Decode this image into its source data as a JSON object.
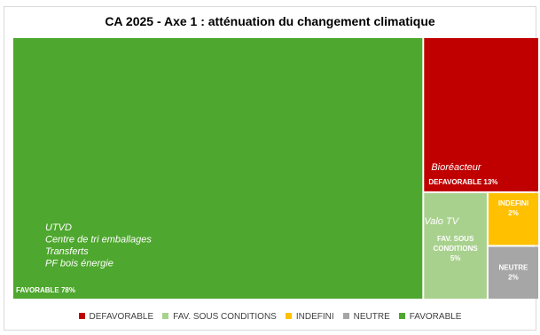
{
  "chart_data": {
    "type": "treemap",
    "title": "CA 2025 - Axe 1 : atténuation du changement climatique",
    "categories": [
      "DEFAVORABLE",
      "FAV. SOUS CONDITIONS",
      "INDEFINI",
      "NEUTRE",
      "FAVORABLE"
    ],
    "colors": {
      "DEFAVORABLE": "#c00000",
      "FAV. SOUS CONDITIONS": "#a9d18e",
      "INDEFINI": "#ffc000",
      "NEUTRE": "#a6a6a6",
      "FAVORABLE": "#4ea72e"
    },
    "tiles": [
      {
        "category": "FAVORABLE",
        "value": 78,
        "label": "FAVORABLE 78%",
        "items": [
          "UTVD",
          "Centre de tri emballages",
          "Transferts",
          "PF bois énergie"
        ]
      },
      {
        "category": "DEFAVORABLE",
        "value": 13,
        "label": "DEFAVORABLE 13%",
        "items": [
          "Bioréacteur"
        ]
      },
      {
        "category": "FAV. SOUS CONDITIONS",
        "value": 5,
        "label": "FAV. SOUS CONDITIONS 5%",
        "label_lines": [
          "FAV. SOUS",
          "CONDITIONS",
          "5%"
        ],
        "items": [
          "Valo TV"
        ]
      },
      {
        "category": "INDEFINI",
        "value": 2,
        "label": "INDEFINI 2%",
        "label_lines": [
          "INDEFINI",
          "2%"
        ],
        "items": []
      },
      {
        "category": "NEUTRE",
        "value": 2,
        "label": "NEUTRE 2%",
        "label_lines": [
          "NEUTRE",
          "2%"
        ],
        "items": []
      }
    ],
    "legend_position": "bottom"
  }
}
